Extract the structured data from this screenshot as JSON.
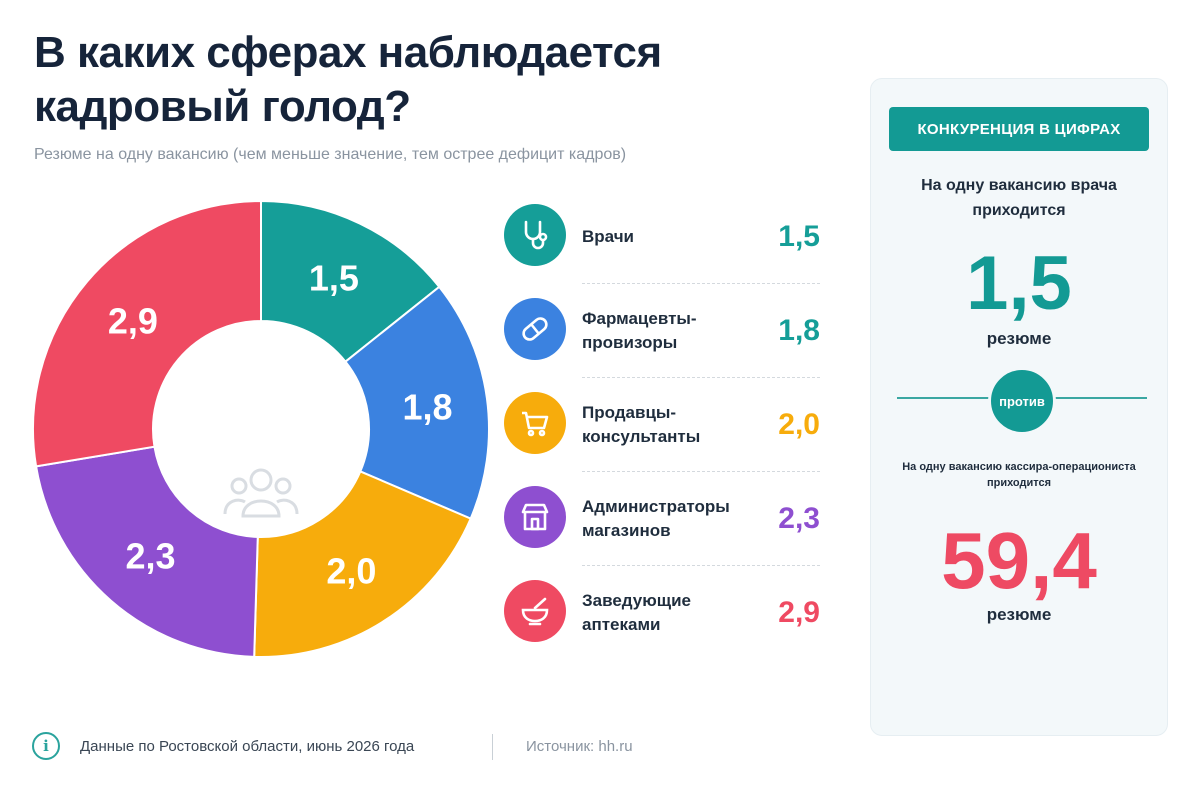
{
  "title_line1": "В каких сферах наблюдается",
  "title_line2": "кадровый голод?",
  "subtitle": "Резюме на одну вакансию (чем меньше значение, тем острее дефицит кадров)",
  "chart_data": {
    "type": "pie",
    "donut": true,
    "categories": [
      "Врачи",
      "Фармацевты-провизоры",
      "Продавцы-консультанты",
      "Администраторы магазинов",
      "Заведующие аптеками"
    ],
    "values": [
      1.5,
      1.8,
      2.0,
      2.3,
      2.9
    ],
    "value_labels": [
      "1,5",
      "1,8",
      "2,0",
      "2,3",
      "2,9"
    ],
    "colors": [
      "#159e98",
      "#3b82e0",
      "#f7ac0c",
      "#8e4fd0",
      "#ef4a62"
    ],
    "start": "top, clockwise",
    "center_icon": "people-group-icon"
  },
  "legend": [
    {
      "line1": "Врачи",
      "line2": "",
      "value": "1,5",
      "color": "#159e98",
      "icon": "stethoscope-icon"
    },
    {
      "line1": "Фармацевты-",
      "line2": "провизоры",
      "value": "1,8",
      "color": "#3b82e0",
      "icon": "pill-icon"
    },
    {
      "line1": "Продавцы-",
      "line2": "консультанты",
      "value": "2,0",
      "color": "#f7ac0c",
      "icon": "shopping-cart-icon"
    },
    {
      "line1": "Администраторы",
      "line2": "магазинов",
      "value": "2,3",
      "color": "#8e4fd0",
      "icon": "storefront-icon"
    },
    {
      "line1": "Заведующие",
      "line2": "аптеками",
      "value": "2,9",
      "color": "#ef4a62",
      "icon": "mortar-pestle-icon"
    }
  ],
  "panel": {
    "badge": "КОНКУРЕНЦИЯ В ЦИФРАХ",
    "text1_line1": "На одну вакансию врача",
    "text1_line2": "приходится",
    "big1": "1,5",
    "unit1": "резюме",
    "vs": "против",
    "text2_line1": "На одну вакансию кассира-операциониста",
    "text2_line2": "приходится",
    "big2": "59,4",
    "unit2": "резюме",
    "accent": "#139a94",
    "highlight": "#ee4a63"
  },
  "footer": {
    "icon": "info-icon",
    "note": "Данные по Ростовской области, июнь 2026 года",
    "source": "Источник: hh.ru"
  }
}
